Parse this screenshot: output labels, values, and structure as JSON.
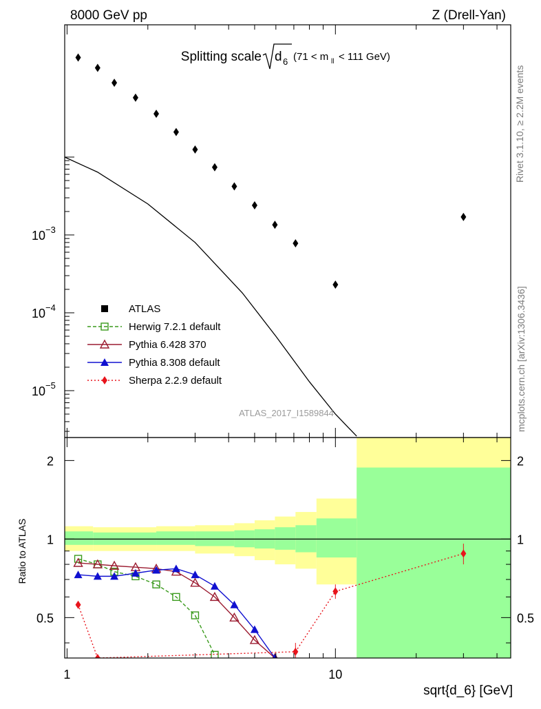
{
  "header": {
    "left": "8000 GeV pp",
    "right": "Z (Drell-Yan)",
    "title_main": "Splitting scale",
    "title_sqrt": "d",
    "title_sub": "6",
    "title_range_a": "(71 < m",
    "title_range_sub": "ll",
    "title_range_b": " < 111 GeV)"
  },
  "side_labels": {
    "rivet": "Rivet 3.1.10, ≥ 2.2M events",
    "mcplots": "mcplots.cern.ch [arXiv:1306.3436]"
  },
  "watermark": "ATLAS_2017_I1589844",
  "legend": [
    {
      "label": "ATLAS",
      "color": "#000000",
      "marker": "square",
      "style": "none"
    },
    {
      "label": "Herwig 7.2.1 default",
      "color": "#3a9a1c",
      "marker": "open-square",
      "style": "dashed"
    },
    {
      "label": "Pythia 6.428 370",
      "color": "#9b1b30",
      "marker": "open-triangle",
      "style": "solid"
    },
    {
      "label": "Pythia 8.308 default",
      "color": "#1010d0",
      "marker": "filled-triangle",
      "style": "solid"
    },
    {
      "label": "Sherpa 2.2.9 default",
      "color": "#e8141c",
      "marker": "filled-diamond",
      "style": "dotted"
    }
  ],
  "main_axis": {
    "tick_labels": [
      {
        "label": "10",
        "exp": "−3",
        "value": 0.001
      },
      {
        "label": "10",
        "exp": "−4",
        "value": 0.0001
      },
      {
        "label": "10",
        "exp": "−5",
        "value": 1e-05
      }
    ]
  },
  "ratio_axis": {
    "ylabel": "Ratio to ATLAS",
    "tick_labels": [
      "2",
      "1",
      "0.5"
    ],
    "tick_values": [
      2,
      1,
      0.5
    ]
  },
  "x_axis": {
    "xlabel": "sqrt{d_6} [GeV]",
    "tick_labels": [
      "1",
      "10"
    ],
    "tick_values": [
      1,
      10
    ]
  },
  "chart_data": [
    {
      "type": "scatter",
      "panel": "main",
      "xlabel": "",
      "ylabel": "",
      "log_x": true,
      "log_y": true,
      "xlim": [
        0.98,
        45
      ],
      "ylim": [
        2.5e-06,
        0.5
      ],
      "series": [
        {
          "name": "ATLAS",
          "x": [
            1.1,
            1.3,
            1.5,
            1.8,
            2.15,
            2.55,
            3.0,
            3.55,
            4.2,
            5.0,
            5.95,
            7.1,
            10.0,
            30.0
          ],
          "y": [
            0.19,
            0.14,
            0.09,
            0.058,
            0.036,
            0.021,
            0.0125,
            0.0074,
            0.0042,
            0.0024,
            0.00135,
            0.00078,
            0.00023,
            0.0017
          ]
        },
        {
          "name": "",
          "x": [
            0.98,
            1.3,
            2.0,
            3.0,
            4.5,
            6.0,
            8.0,
            10.0,
            12.0
          ],
          "y": [
            0.01,
            0.0064,
            0.0025,
            0.0008,
            0.00018,
            5e-05,
            1.3e-05,
            5e-06,
            2.6e-06
          ]
        }
      ]
    },
    {
      "type": "line",
      "panel": "ratio",
      "xlabel": "sqrt{d_6} [GeV]",
      "ylabel": "Ratio to ATLAS",
      "log_x": true,
      "log_y": true,
      "xlim": [
        0.98,
        45
      ],
      "ylim": [
        0.35,
        2.45
      ],
      "bands": [
        {
          "x0": 0.98,
          "x1": 1.25,
          "outer": [
            0.9,
            1.12
          ],
          "inner": [
            0.95,
            1.07
          ]
        },
        {
          "x0": 1.25,
          "x1": 2.15,
          "outer": [
            0.9,
            1.11
          ],
          "inner": [
            0.95,
            1.06
          ]
        },
        {
          "x0": 2.15,
          "x1": 3.0,
          "outer": [
            0.9,
            1.12
          ],
          "inner": [
            0.95,
            1.07
          ]
        },
        {
          "x0": 3.0,
          "x1": 4.2,
          "outer": [
            0.88,
            1.13
          ],
          "inner": [
            0.94,
            1.07
          ]
        },
        {
          "x0": 4.2,
          "x1": 5.0,
          "outer": [
            0.86,
            1.15
          ],
          "inner": [
            0.93,
            1.08
          ]
        },
        {
          "x0": 5.0,
          "x1": 5.95,
          "outer": [
            0.83,
            1.18
          ],
          "inner": [
            0.92,
            1.09
          ]
        },
        {
          "x0": 5.95,
          "x1": 7.1,
          "outer": [
            0.8,
            1.22
          ],
          "inner": [
            0.91,
            1.11
          ]
        },
        {
          "x0": 7.1,
          "x1": 8.5,
          "outer": [
            0.77,
            1.27
          ],
          "inner": [
            0.89,
            1.13
          ]
        },
        {
          "x0": 8.5,
          "x1": 12.0,
          "outer": [
            0.67,
            1.43
          ],
          "inner": [
            0.85,
            1.2
          ]
        },
        {
          "x0": 12.0,
          "x1": 45.0,
          "outer": [
            0.35,
            2.45
          ],
          "inner": [
            0.35,
            1.88
          ]
        }
      ],
      "series": [
        {
          "name": "Herwig 7.2.1 default",
          "x": [
            1.1,
            1.3,
            1.5,
            1.8,
            2.15,
            2.55,
            3.0,
            3.55
          ],
          "y": [
            0.84,
            0.8,
            0.75,
            0.72,
            0.67,
            0.6,
            0.51,
            0.36
          ]
        },
        {
          "name": "Pythia 6.428 370",
          "x": [
            1.1,
            1.3,
            1.5,
            1.8,
            2.15,
            2.55,
            3.0,
            3.55,
            4.2,
            5.0,
            5.95
          ],
          "y": [
            0.81,
            0.8,
            0.79,
            0.78,
            0.77,
            0.75,
            0.68,
            0.6,
            0.5,
            0.41,
            0.35
          ]
        },
        {
          "name": "Pythia 8.308 default",
          "x": [
            1.1,
            1.3,
            1.5,
            1.8,
            2.15,
            2.55,
            3.0,
            3.55,
            4.2,
            5.0,
            5.95
          ],
          "y": [
            0.73,
            0.72,
            0.72,
            0.74,
            0.76,
            0.77,
            0.73,
            0.66,
            0.56,
            0.45,
            0.35
          ]
        },
        {
          "name": "Sherpa 2.2.9 default",
          "x": [
            1.1,
            1.3,
            7.1,
            10.0,
            30.0
          ],
          "y": [
            0.56,
            0.35,
            0.37,
            0.63,
            0.88
          ],
          "yerr": [
            0,
            0,
            0.03,
            0.04,
            0.08
          ]
        }
      ]
    }
  ]
}
